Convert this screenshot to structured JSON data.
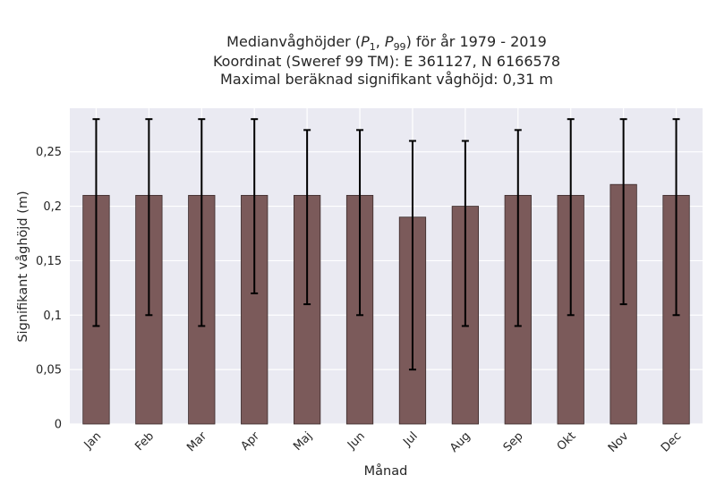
{
  "chart_data": {
    "type": "bar",
    "title": {
      "line1_prefix": "Medianvåghöjder (",
      "p1_main": "P",
      "p1_sub": "1",
      "separator": ", ",
      "p99_main": "P",
      "p99_sub": "99",
      "line1_suffix": ") för år 1979 - 2019",
      "line2": "Koordinat (Sweref 99 TM): E 361127, N 6166578",
      "line3": "Maximal beräknad signifikant våghöjd: 0,31 m"
    },
    "xlabel": "Månad",
    "ylabel": "Signifikant våghöjd (m)",
    "categories": [
      "Jan",
      "Feb",
      "Mar",
      "Apr",
      "Maj",
      "Jun",
      "Jul",
      "Aug",
      "Sep",
      "Okt",
      "Nov",
      "Dec"
    ],
    "values": [
      0.21,
      0.21,
      0.21,
      0.21,
      0.21,
      0.21,
      0.19,
      0.2,
      0.21,
      0.21,
      0.22,
      0.21
    ],
    "error_low": [
      0.09,
      0.1,
      0.09,
      0.12,
      0.11,
      0.1,
      0.05,
      0.09,
      0.09,
      0.1,
      0.11,
      0.1
    ],
    "error_high": [
      0.28,
      0.28,
      0.28,
      0.28,
      0.27,
      0.27,
      0.26,
      0.26,
      0.27,
      0.28,
      0.28,
      0.28
    ],
    "yticks": [
      0,
      0.05,
      0.1,
      0.15,
      0.2,
      0.25
    ],
    "ytick_labels": [
      "0",
      "0,05",
      "0,1",
      "0,15",
      "0,2",
      "0,25"
    ],
    "ylim": [
      0,
      0.29
    ],
    "grid": true,
    "colors": {
      "bar": "#7b5a5a",
      "bar_edge": "#3a2a2a",
      "error": "#000000",
      "plot_bg": "#eaeaf2",
      "grid": "#ffffff"
    }
  }
}
